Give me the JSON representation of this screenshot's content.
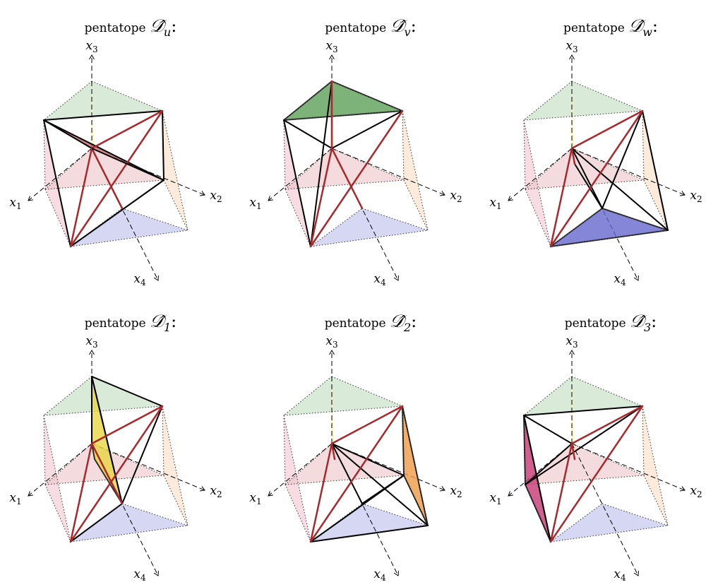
{
  "figure": {
    "panels": [
      {
        "id": "u",
        "title_word": "pentatope",
        "title_symbol": "𝒟̂",
        "title_subscript": "u",
        "title_suffix": ":",
        "highlight_face": "x1x2x3",
        "highlight_color": "#c65555"
      },
      {
        "id": "v",
        "title_word": "pentatope",
        "title_symbol": "𝒟̂",
        "title_subscript": "v",
        "title_suffix": ":",
        "highlight_face": "top",
        "highlight_color": "#5fa05a"
      },
      {
        "id": "w",
        "title_word": "pentatope",
        "title_symbol": "𝒟̂",
        "title_subscript": "w",
        "title_suffix": ":",
        "highlight_face": "bottom",
        "highlight_color": "#6b6bd0"
      },
      {
        "id": "1",
        "title_word": "pentatope",
        "title_symbol": "𝒟̂",
        "title_subscript": "1",
        "title_suffix": ":",
        "highlight_face": "x3-slab",
        "highlight_color": "#e8d640"
      },
      {
        "id": "2",
        "title_word": "pentatope",
        "title_symbol": "𝒟̂",
        "title_subscript": "2",
        "title_suffix": ":",
        "highlight_face": "x2-side",
        "highlight_color": "#f0a050"
      },
      {
        "id": "3",
        "title_word": "pentatope",
        "title_symbol": "𝒟̂",
        "title_subscript": "3",
        "title_suffix": ":",
        "highlight_face": "x1-side",
        "highlight_color": "#c8407a"
      }
    ],
    "axis_labels": {
      "x1": "x",
      "x1_sub": "1",
      "x2": "x",
      "x2_sub": "2",
      "x3": "x",
      "x3_sub": "3",
      "x4": "x",
      "x4_sub": "4"
    },
    "colors": {
      "ghost_top": "#cde3cc",
      "ghost_left": "#f3cdd8",
      "ghost_right": "#fbe3cc",
      "ghost_bottom": "#cccdf0",
      "ghost_center": "#f7f3b8",
      "ghost_mid": "#ecc4c8",
      "diagonal": "#a8282c",
      "edge": "#000000"
    }
  }
}
